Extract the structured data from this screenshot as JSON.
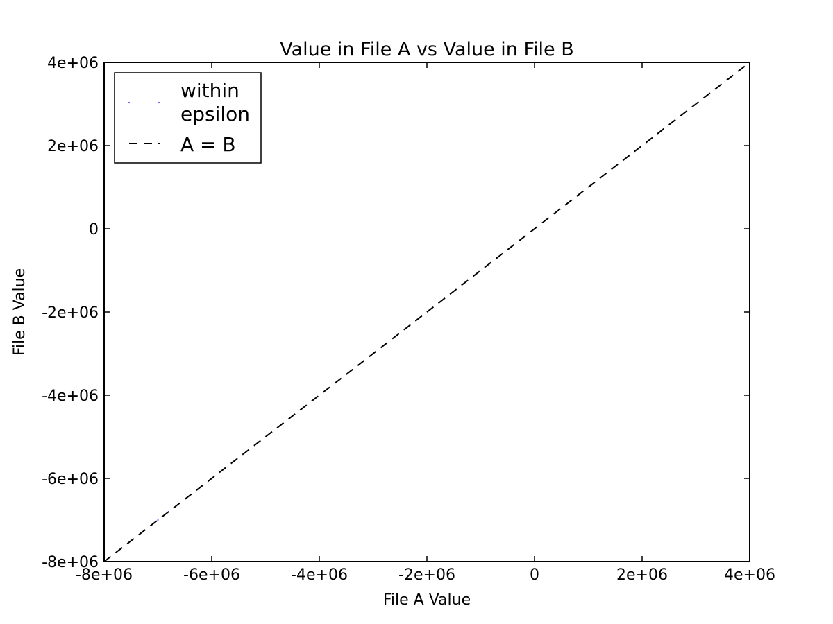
{
  "chart_data": {
    "type": "scatter",
    "title": "Value in File A vs Value in File B",
    "xlabel": "File A Value",
    "ylabel": "File B Value",
    "xlim": [
      -8000000,
      4000000
    ],
    "ylim": [
      -8000000,
      4000000
    ],
    "xticks": [
      -8000000,
      -6000000,
      -4000000,
      -2000000,
      0,
      2000000,
      4000000
    ],
    "xtick_labels": [
      "-8e+06",
      "-6e+06",
      "-4e+06",
      "-2e+06",
      "0",
      "2e+06",
      "4e+06"
    ],
    "yticks": [
      -8000000,
      -6000000,
      -4000000,
      -2000000,
      0,
      2000000,
      4000000
    ],
    "ytick_labels": [
      "-8e+06",
      "-6e+06",
      "-4e+06",
      "-2e+06",
      "0",
      "2e+06",
      "4e+06"
    ],
    "grid": false,
    "legend_position": "top-left",
    "series": [
      {
        "name_lines": [
          "within",
          "epsilon"
        ],
        "style": "points",
        "color": "#0000ff",
        "x": [
          -7000000,
          -6800000,
          2400000
        ],
        "y": [
          -7000000,
          -6800000,
          2400000
        ]
      },
      {
        "name": "A = B",
        "style": "dashed-line",
        "color": "#000000",
        "x": [
          -8000000,
          4000000
        ],
        "y": [
          -8000000,
          4000000
        ]
      }
    ]
  }
}
